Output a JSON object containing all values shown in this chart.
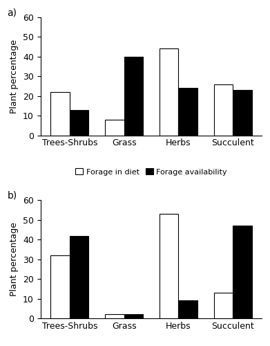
{
  "panel_a": {
    "label": "a)",
    "categories": [
      "Trees-Shrubs",
      "Grass",
      "Herbs",
      "Succulent"
    ],
    "forage_in_diet": [
      22,
      8,
      44,
      26
    ],
    "forage_availability": [
      13,
      40,
      24,
      23
    ],
    "ylim": [
      0,
      60
    ],
    "yticks": [
      0,
      10,
      20,
      30,
      40,
      50,
      60
    ]
  },
  "panel_b": {
    "label": "b)",
    "categories": [
      "Trees-Shrubs",
      "Grass",
      "Herbs",
      "Succulent"
    ],
    "forage_in_diet": [
      32,
      2,
      53,
      13
    ],
    "forage_availability": [
      42,
      2,
      9,
      47
    ],
    "ylim": [
      0,
      60
    ],
    "yticks": [
      0,
      10,
      20,
      30,
      40,
      50,
      60
    ]
  },
  "bar_width": 0.35,
  "color_diet": "#ffffff",
  "color_availability": "#000000",
  "edgecolor": "#000000",
  "ylabel": "Plant percentage",
  "legend_diet": "Forage in diet",
  "legend_availability": "Forage availability",
  "background_color": "#ffffff",
  "font_size": 9,
  "label_fontsize": 9,
  "legend_fontsize": 8
}
